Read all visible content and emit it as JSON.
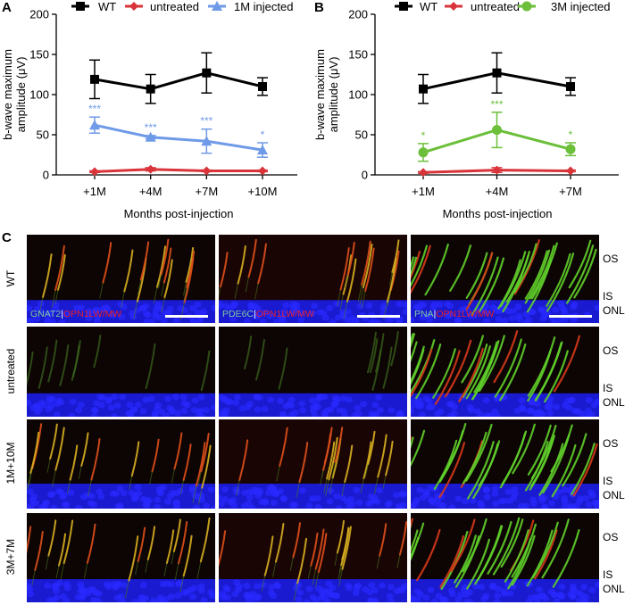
{
  "panel_labels": [
    "A",
    "B",
    "C"
  ],
  "chart_data": [
    {
      "type": "line",
      "panel": "A",
      "xlabel": "Months post-injection",
      "ylabel": [
        "b-wave maximum",
        "amplitude (μV)"
      ],
      "categories": [
        "+1M",
        "+4M",
        "+7M",
        "+10M"
      ],
      "ylim": [
        0,
        200
      ],
      "yticks": [
        0,
        50,
        100,
        150,
        200
      ],
      "legend": "top",
      "series": [
        {
          "name": "WT",
          "color": "#000000",
          "marker": "square",
          "values": [
            119,
            107,
            127,
            110
          ],
          "errors": [
            24,
            18,
            25,
            11
          ],
          "significance": [
            "",
            "",
            "",
            ""
          ]
        },
        {
          "name": "untreated",
          "color": "#d9343a",
          "marker": "diamond",
          "values": [
            4,
            7,
            5,
            5
          ],
          "errors": [
            1,
            2,
            1,
            1
          ],
          "significance": [
            "",
            "",
            "",
            ""
          ]
        },
        {
          "name": "1M injected",
          "color": "#6f9ae8",
          "marker": "triangle",
          "values": [
            62,
            47,
            42,
            31
          ],
          "errors": [
            10,
            2,
            15,
            9
          ],
          "significance": [
            "***",
            "***",
            "***",
            "*"
          ]
        }
      ]
    },
    {
      "type": "line",
      "panel": "B",
      "xlabel": "Months post-injection",
      "ylabel": [
        "b-wave maximum",
        "amplitude (μV)"
      ],
      "categories": [
        "+1M",
        "+4M",
        "+7M"
      ],
      "ylim": [
        0,
        200
      ],
      "yticks": [
        0,
        50,
        100,
        150,
        200
      ],
      "legend": "top",
      "series": [
        {
          "name": "WT",
          "color": "#000000",
          "marker": "square",
          "values": [
            107,
            127,
            110
          ],
          "errors": [
            18,
            25,
            11
          ],
          "significance": [
            "",
            "",
            ""
          ]
        },
        {
          "name": "untreated",
          "color": "#d9343a",
          "marker": "diamond",
          "values": [
            3,
            6,
            5
          ],
          "errors": [
            1,
            3,
            1
          ],
          "significance": [
            "",
            "",
            ""
          ]
        },
        {
          "name": "3M injected",
          "color": "#6cbf3a",
          "marker": "circle",
          "values": [
            28,
            56,
            32
          ],
          "errors": [
            11,
            22,
            8
          ],
          "significance": [
            "*",
            "***",
            "*"
          ]
        }
      ]
    }
  ],
  "micrographs": {
    "rows": [
      "WT",
      "untreated",
      "1M+10M",
      "3M+7M"
    ],
    "layers": [
      "OS",
      "IS",
      "ONL"
    ],
    "columns": [
      {
        "marker": "GNAT2",
        "separator": "|",
        "counterstain": "OPN1LW/MW",
        "marker_color": "#7fc8a0",
        "counter_color": "#e8202a"
      },
      {
        "marker": "PDE6C",
        "separator": "|",
        "counterstain": "OPN1LW/MW",
        "marker_color": "#7fc8a0",
        "counter_color": "#e8202a"
      },
      {
        "marker": "PNA",
        "separator": "|",
        "counterstain": "OPN1LW/MW",
        "marker_color": "#7fc8a0",
        "counter_color": "#e8202a"
      }
    ]
  }
}
